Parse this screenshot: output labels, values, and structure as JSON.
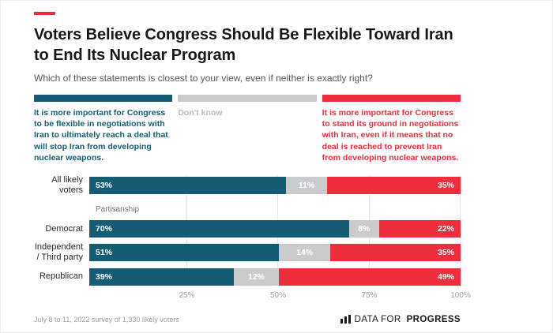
{
  "accent_bar_color": "#ee2e3c",
  "header": {
    "title_line1": "Voters Believe Congress Should Be Flexible Toward Iran",
    "title_line2": "to End Its Nuclear Program",
    "subtitle": "Which of these statements is closest to your view, even if neither is exactly right?"
  },
  "chart_data": {
    "type": "bar",
    "orientation": "horizontal",
    "stacked": true,
    "categories": [
      "All likely voters",
      "Democrat",
      "Independent / Third party",
      "Republican"
    ],
    "series": [
      {
        "name": "It is more important for Congress to be flexible in negotiations with Iran to ultimately reach a deal that will stop Iran from developing nuclear weapons.",
        "color": "#145c73",
        "legend_text_color": "#145c73",
        "values": [
          53,
          70,
          51,
          39
        ]
      },
      {
        "name": "Don't know",
        "color": "#c9cbcc",
        "legend_text_color": "#b9bcbe",
        "values": [
          11,
          8,
          14,
          12
        ]
      },
      {
        "name": "It is more important for Congress to stand its ground in negotiations with Iran, even if it means that no deal is reached to prevent Iran from developing nuclear weapons.",
        "color": "#ee2e3c",
        "legend_text_color": "#ee2e3c",
        "values": [
          35,
          22,
          35,
          49
        ]
      }
    ],
    "group_label": "Partisanship",
    "group_label_before_index": 1,
    "value_label_format": "{v}%",
    "value_label_color": "#ffffff",
    "x_ticks": [
      {
        "label": "25%",
        "value": 25
      },
      {
        "label": "50%",
        "value": 50
      },
      {
        "label": "75%",
        "value": 75
      },
      {
        "label": "100%",
        "value": 100
      }
    ],
    "xlim": [
      0,
      100
    ],
    "grid": true,
    "gridline_color": "#e5e7e8"
  },
  "footer": {
    "source": "July 8 to 11, 2022 survey of 1,330 likely voters",
    "brand_regular": "DATA FOR",
    "brand_bold": "PROGRESS"
  }
}
